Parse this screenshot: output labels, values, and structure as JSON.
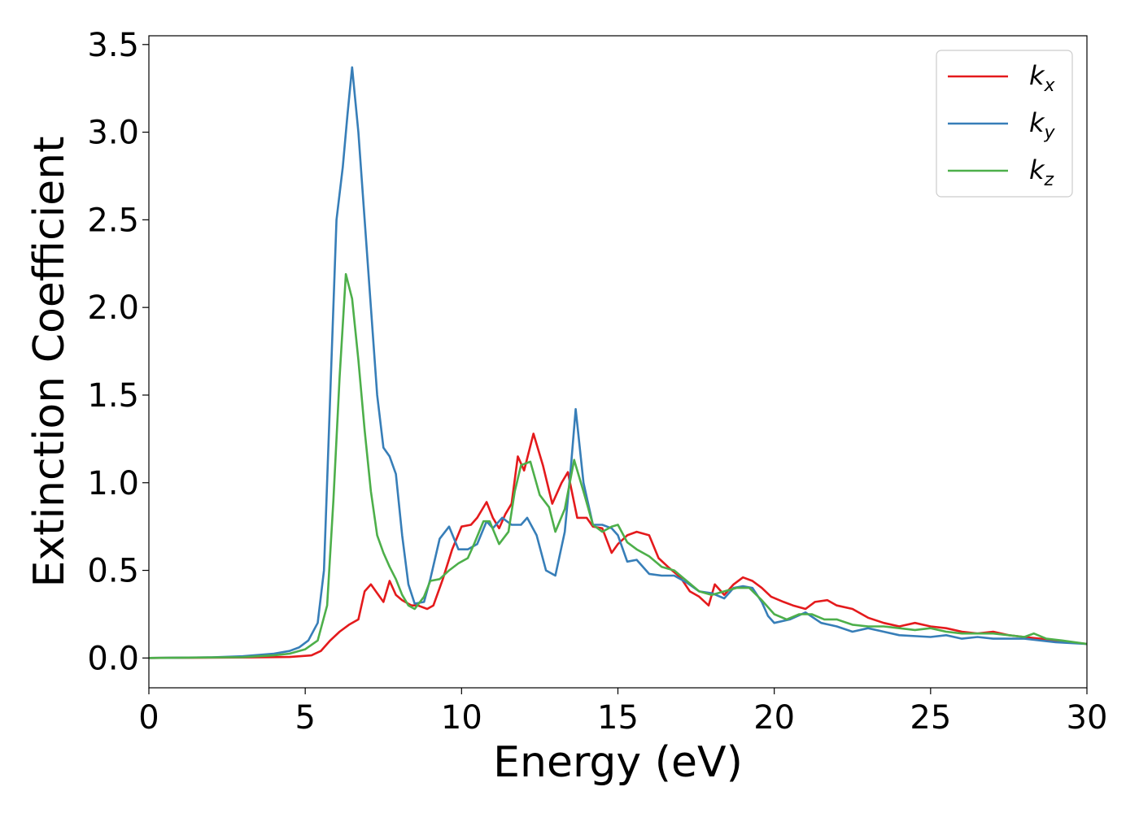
{
  "chart_data": {
    "type": "line",
    "title": "",
    "xlabel": "Energy (eV)",
    "ylabel": "Extinction Coefficient",
    "xlim": [
      0,
      30
    ],
    "ylim": [
      -0.17,
      3.55
    ],
    "xticks": [
      0,
      5,
      10,
      15,
      20,
      25,
      30
    ],
    "xtick_labels": [
      "0",
      "5",
      "10",
      "15",
      "20",
      "25",
      "30"
    ],
    "yticks": [
      0.0,
      0.5,
      1.0,
      1.5,
      2.0,
      2.5,
      3.0,
      3.5
    ],
    "ytick_labels": [
      "0.0",
      "0.5",
      "1.0",
      "1.5",
      "2.0",
      "2.5",
      "3.0",
      "3.5"
    ],
    "grid": false,
    "legend_position": "top-right",
    "series": [
      {
        "name": "k",
        "subscript": "x",
        "color": "#e41a1c",
        "points": [
          [
            0,
            0
          ],
          [
            3,
            0.003
          ],
          [
            4.5,
            0.006
          ],
          [
            5.2,
            0.015
          ],
          [
            5.5,
            0.04
          ],
          [
            5.8,
            0.1
          ],
          [
            6.1,
            0.15
          ],
          [
            6.4,
            0.19
          ],
          [
            6.7,
            0.22
          ],
          [
            6.9,
            0.38
          ],
          [
            7.1,
            0.42
          ],
          [
            7.3,
            0.37
          ],
          [
            7.5,
            0.32
          ],
          [
            7.7,
            0.44
          ],
          [
            7.9,
            0.36
          ],
          [
            8.1,
            0.33
          ],
          [
            8.4,
            0.3
          ],
          [
            8.6,
            0.3
          ],
          [
            8.9,
            0.28
          ],
          [
            9.1,
            0.3
          ],
          [
            9.4,
            0.45
          ],
          [
            9.7,
            0.62
          ],
          [
            10,
            0.75
          ],
          [
            10.3,
            0.76
          ],
          [
            10.5,
            0.8
          ],
          [
            10.8,
            0.89
          ],
          [
            11.0,
            0.8
          ],
          [
            11.2,
            0.74
          ],
          [
            11.4,
            0.82
          ],
          [
            11.6,
            0.88
          ],
          [
            11.8,
            1.15
          ],
          [
            12.0,
            1.07
          ],
          [
            12.3,
            1.28
          ],
          [
            12.6,
            1.1
          ],
          [
            12.9,
            0.88
          ],
          [
            13.2,
            1.0
          ],
          [
            13.4,
            1.06
          ],
          [
            13.7,
            0.8
          ],
          [
            14.0,
            0.8
          ],
          [
            14.2,
            0.75
          ],
          [
            14.5,
            0.74
          ],
          [
            14.8,
            0.6
          ],
          [
            15.0,
            0.65
          ],
          [
            15.3,
            0.7
          ],
          [
            15.6,
            0.72
          ],
          [
            16.0,
            0.7
          ],
          [
            16.3,
            0.57
          ],
          [
            16.6,
            0.52
          ],
          [
            17.0,
            0.46
          ],
          [
            17.3,
            0.38
          ],
          [
            17.6,
            0.35
          ],
          [
            17.9,
            0.3
          ],
          [
            18.1,
            0.42
          ],
          [
            18.4,
            0.36
          ],
          [
            18.7,
            0.42
          ],
          [
            19.0,
            0.46
          ],
          [
            19.3,
            0.44
          ],
          [
            19.6,
            0.4
          ],
          [
            19.9,
            0.35
          ],
          [
            20.3,
            0.32
          ],
          [
            20.6,
            0.3
          ],
          [
            21.0,
            0.28
          ],
          [
            21.3,
            0.32
          ],
          [
            21.7,
            0.33
          ],
          [
            22.0,
            0.3
          ],
          [
            22.5,
            0.28
          ],
          [
            23.0,
            0.23
          ],
          [
            23.5,
            0.2
          ],
          [
            24.0,
            0.18
          ],
          [
            24.5,
            0.2
          ],
          [
            25.0,
            0.18
          ],
          [
            25.5,
            0.17
          ],
          [
            26.0,
            0.15
          ],
          [
            26.5,
            0.14
          ],
          [
            27.0,
            0.15
          ],
          [
            27.5,
            0.13
          ],
          [
            28.0,
            0.12
          ],
          [
            28.5,
            0.11
          ],
          [
            29.0,
            0.1
          ],
          [
            29.5,
            0.09
          ],
          [
            30,
            0.08
          ]
        ]
      },
      {
        "name": "k",
        "subscript": "y",
        "color": "#377eb8",
        "points": [
          [
            0,
            0
          ],
          [
            2,
            0.004
          ],
          [
            3,
            0.01
          ],
          [
            4,
            0.025
          ],
          [
            4.5,
            0.04
          ],
          [
            4.8,
            0.06
          ],
          [
            5.1,
            0.1
          ],
          [
            5.4,
            0.2
          ],
          [
            5.6,
            0.5
          ],
          [
            5.8,
            1.5
          ],
          [
            6.0,
            2.5
          ],
          [
            6.2,
            2.8
          ],
          [
            6.35,
            3.1
          ],
          [
            6.5,
            3.37
          ],
          [
            6.7,
            3.0
          ],
          [
            6.9,
            2.5
          ],
          [
            7.1,
            2.0
          ],
          [
            7.3,
            1.5
          ],
          [
            7.5,
            1.2
          ],
          [
            7.7,
            1.15
          ],
          [
            7.9,
            1.05
          ],
          [
            8.1,
            0.7
          ],
          [
            8.3,
            0.42
          ],
          [
            8.5,
            0.31
          ],
          [
            8.8,
            0.32
          ],
          [
            9.0,
            0.45
          ],
          [
            9.3,
            0.68
          ],
          [
            9.6,
            0.75
          ],
          [
            9.9,
            0.62
          ],
          [
            10.2,
            0.62
          ],
          [
            10.5,
            0.65
          ],
          [
            10.8,
            0.78
          ],
          [
            11.0,
            0.74
          ],
          [
            11.3,
            0.8
          ],
          [
            11.6,
            0.76
          ],
          [
            11.9,
            0.76
          ],
          [
            12.1,
            0.8
          ],
          [
            12.4,
            0.7
          ],
          [
            12.7,
            0.5
          ],
          [
            13.0,
            0.47
          ],
          [
            13.3,
            0.72
          ],
          [
            13.5,
            1.1
          ],
          [
            13.65,
            1.42
          ],
          [
            13.9,
            1.0
          ],
          [
            14.2,
            0.76
          ],
          [
            14.5,
            0.76
          ],
          [
            14.8,
            0.74
          ],
          [
            15.0,
            0.7
          ],
          [
            15.3,
            0.55
          ],
          [
            15.6,
            0.56
          ],
          [
            16.0,
            0.48
          ],
          [
            16.4,
            0.47
          ],
          [
            16.8,
            0.47
          ],
          [
            17.2,
            0.43
          ],
          [
            17.6,
            0.38
          ],
          [
            18.0,
            0.37
          ],
          [
            18.4,
            0.34
          ],
          [
            18.7,
            0.4
          ],
          [
            19.0,
            0.41
          ],
          [
            19.3,
            0.4
          ],
          [
            19.6,
            0.32
          ],
          [
            19.8,
            0.24
          ],
          [
            20.0,
            0.2
          ],
          [
            20.5,
            0.22
          ],
          [
            21.0,
            0.26
          ],
          [
            21.5,
            0.2
          ],
          [
            22.0,
            0.18
          ],
          [
            22.5,
            0.15
          ],
          [
            23.0,
            0.17
          ],
          [
            23.5,
            0.15
          ],
          [
            24.0,
            0.13
          ],
          [
            25.0,
            0.12
          ],
          [
            25.5,
            0.13
          ],
          [
            26.0,
            0.11
          ],
          [
            26.5,
            0.12
          ],
          [
            27.0,
            0.11
          ],
          [
            28.0,
            0.11
          ],
          [
            29.0,
            0.09
          ],
          [
            30,
            0.08
          ]
        ]
      },
      {
        "name": "k",
        "subscript": "z",
        "color": "#4daf4a",
        "points": [
          [
            0,
            0
          ],
          [
            3,
            0.005
          ],
          [
            4,
            0.015
          ],
          [
            4.5,
            0.025
          ],
          [
            5.0,
            0.05
          ],
          [
            5.4,
            0.1
          ],
          [
            5.7,
            0.3
          ],
          [
            5.9,
            0.9
          ],
          [
            6.1,
            1.6
          ],
          [
            6.3,
            2.19
          ],
          [
            6.5,
            2.05
          ],
          [
            6.7,
            1.7
          ],
          [
            6.9,
            1.3
          ],
          [
            7.1,
            0.95
          ],
          [
            7.3,
            0.7
          ],
          [
            7.5,
            0.6
          ],
          [
            7.7,
            0.52
          ],
          [
            7.9,
            0.45
          ],
          [
            8.1,
            0.36
          ],
          [
            8.3,
            0.3
          ],
          [
            8.5,
            0.28
          ],
          [
            8.8,
            0.35
          ],
          [
            9.0,
            0.44
          ],
          [
            9.3,
            0.45
          ],
          [
            9.6,
            0.5
          ],
          [
            9.9,
            0.54
          ],
          [
            10.2,
            0.57
          ],
          [
            10.4,
            0.65
          ],
          [
            10.7,
            0.78
          ],
          [
            10.9,
            0.78
          ],
          [
            11.2,
            0.65
          ],
          [
            11.5,
            0.72
          ],
          [
            11.7,
            0.95
          ],
          [
            11.9,
            1.1
          ],
          [
            12.2,
            1.12
          ],
          [
            12.5,
            0.93
          ],
          [
            12.8,
            0.86
          ],
          [
            13.0,
            0.72
          ],
          [
            13.3,
            0.85
          ],
          [
            13.6,
            1.13
          ],
          [
            13.9,
            0.95
          ],
          [
            14.2,
            0.76
          ],
          [
            14.5,
            0.72
          ],
          [
            14.8,
            0.75
          ],
          [
            15.0,
            0.76
          ],
          [
            15.3,
            0.66
          ],
          [
            15.6,
            0.62
          ],
          [
            16.0,
            0.58
          ],
          [
            16.4,
            0.52
          ],
          [
            16.8,
            0.5
          ],
          [
            17.2,
            0.44
          ],
          [
            17.6,
            0.38
          ],
          [
            18.0,
            0.36
          ],
          [
            18.4,
            0.38
          ],
          [
            18.8,
            0.4
          ],
          [
            19.2,
            0.4
          ],
          [
            19.6,
            0.33
          ],
          [
            20.0,
            0.25
          ],
          [
            20.4,
            0.22
          ],
          [
            20.8,
            0.25
          ],
          [
            21.2,
            0.25
          ],
          [
            21.6,
            0.22
          ],
          [
            22.0,
            0.22
          ],
          [
            22.5,
            0.19
          ],
          [
            23.0,
            0.18
          ],
          [
            23.5,
            0.18
          ],
          [
            24.0,
            0.17
          ],
          [
            24.5,
            0.16
          ],
          [
            25.0,
            0.17
          ],
          [
            25.5,
            0.15
          ],
          [
            26.0,
            0.14
          ],
          [
            26.5,
            0.14
          ],
          [
            27.0,
            0.14
          ],
          [
            27.5,
            0.13
          ],
          [
            28.0,
            0.12
          ],
          [
            28.3,
            0.14
          ],
          [
            28.7,
            0.11
          ],
          [
            29.2,
            0.1
          ],
          [
            30,
            0.08
          ]
        ]
      }
    ]
  }
}
